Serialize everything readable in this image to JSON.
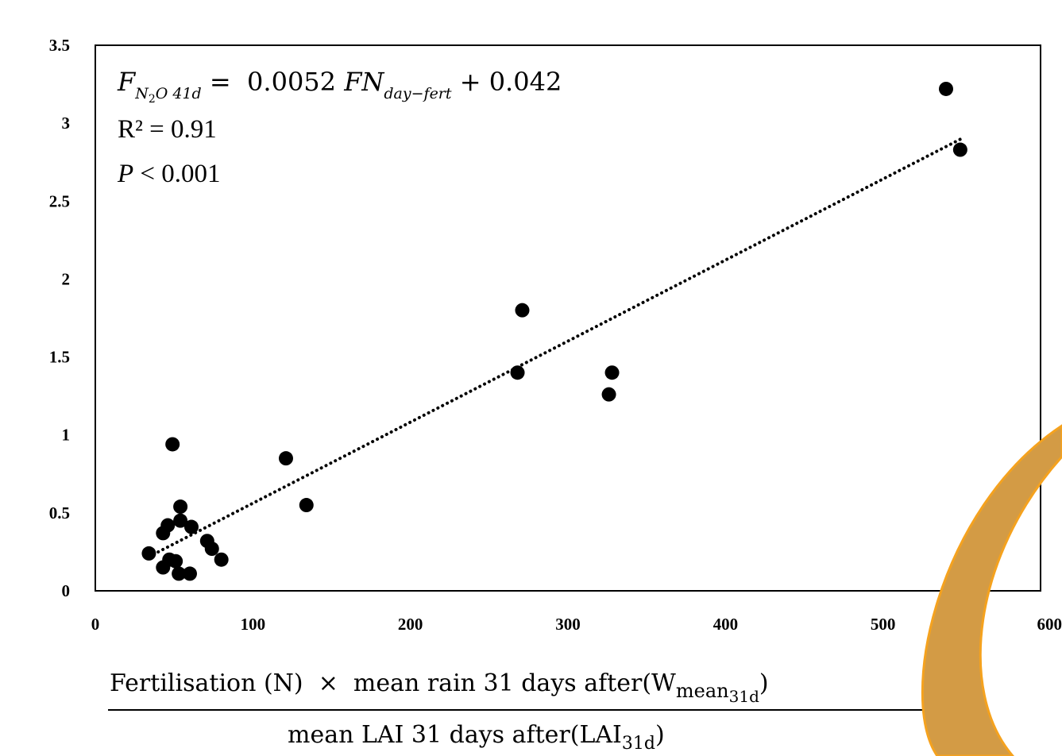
{
  "chart_data": {
    "type": "scatter",
    "title": "",
    "xlim": [
      0,
      600
    ],
    "ylim": [
      0,
      3.5
    ],
    "x_ticks": [
      0,
      100,
      200,
      300,
      400,
      500,
      600
    ],
    "x_tick_labels": [
      "0",
      "100",
      "200",
      "300",
      "400",
      "500",
      "600"
    ],
    "y_ticks": [
      0,
      0.5,
      1,
      1.5,
      2,
      2.5,
      3,
      3.5
    ],
    "y_tick_labels": [
      "0",
      "0.5",
      "1",
      "1.5",
      "2",
      "2.5",
      "3",
      "3.5"
    ],
    "grid": false,
    "legend": "none",
    "series": [
      {
        "marker": "filled-circle",
        "color": "#000000",
        "points": [
          {
            "x": 34,
            "y": 0.24
          },
          {
            "x": 43,
            "y": 0.37
          },
          {
            "x": 43,
            "y": 0.15
          },
          {
            "x": 46,
            "y": 0.42
          },
          {
            "x": 47,
            "y": 0.2
          },
          {
            "x": 49,
            "y": 0.94
          },
          {
            "x": 51,
            "y": 0.19
          },
          {
            "x": 53,
            "y": 0.11
          },
          {
            "x": 54,
            "y": 0.54
          },
          {
            "x": 54,
            "y": 0.45
          },
          {
            "x": 60,
            "y": 0.11
          },
          {
            "x": 61,
            "y": 0.41
          },
          {
            "x": 71,
            "y": 0.32
          },
          {
            "x": 74,
            "y": 0.27
          },
          {
            "x": 80,
            "y": 0.2
          },
          {
            "x": 121,
            "y": 0.85
          },
          {
            "x": 134,
            "y": 0.55
          },
          {
            "x": 268,
            "y": 1.4
          },
          {
            "x": 271,
            "y": 1.8
          },
          {
            "x": 326,
            "y": 1.26
          },
          {
            "x": 328,
            "y": 1.4
          },
          {
            "x": 540,
            "y": 3.22
          },
          {
            "x": 549,
            "y": 2.83
          }
        ]
      }
    ],
    "trendline": {
      "style": "dotted",
      "color": "#000000",
      "slope": 0.0052,
      "intercept": 0.042,
      "x_range": [
        34,
        549
      ]
    },
    "annotation": {
      "equation_lhs_var": "F",
      "equation_lhs_sub": "N",
      "equation_lhs_sub2": "2",
      "equation_lhs_sub3": "O 41d",
      "equation_eq": " =  0.0052 ",
      "equation_var": "FN",
      "equation_var_sub": "day−fert",
      "equation_tail": " + 0.042",
      "r2": "R² = 0.91",
      "p_italic": "P",
      "p_rest": " < 0.001"
    },
    "xlabel": {
      "numerator": "Fertilisation (N)  ×  mean rain 31 days after(W",
      "numerator_sub": "mean",
      "numerator_sub2": "31d",
      "numerator_close": ")",
      "denominator": "mean LAI 31 days after(LAI",
      "denominator_sub": "31d",
      "denominator_close": ")"
    },
    "overlay_color_fill": "#d39b45",
    "overlay_color_stroke": "#f5a21e"
  }
}
